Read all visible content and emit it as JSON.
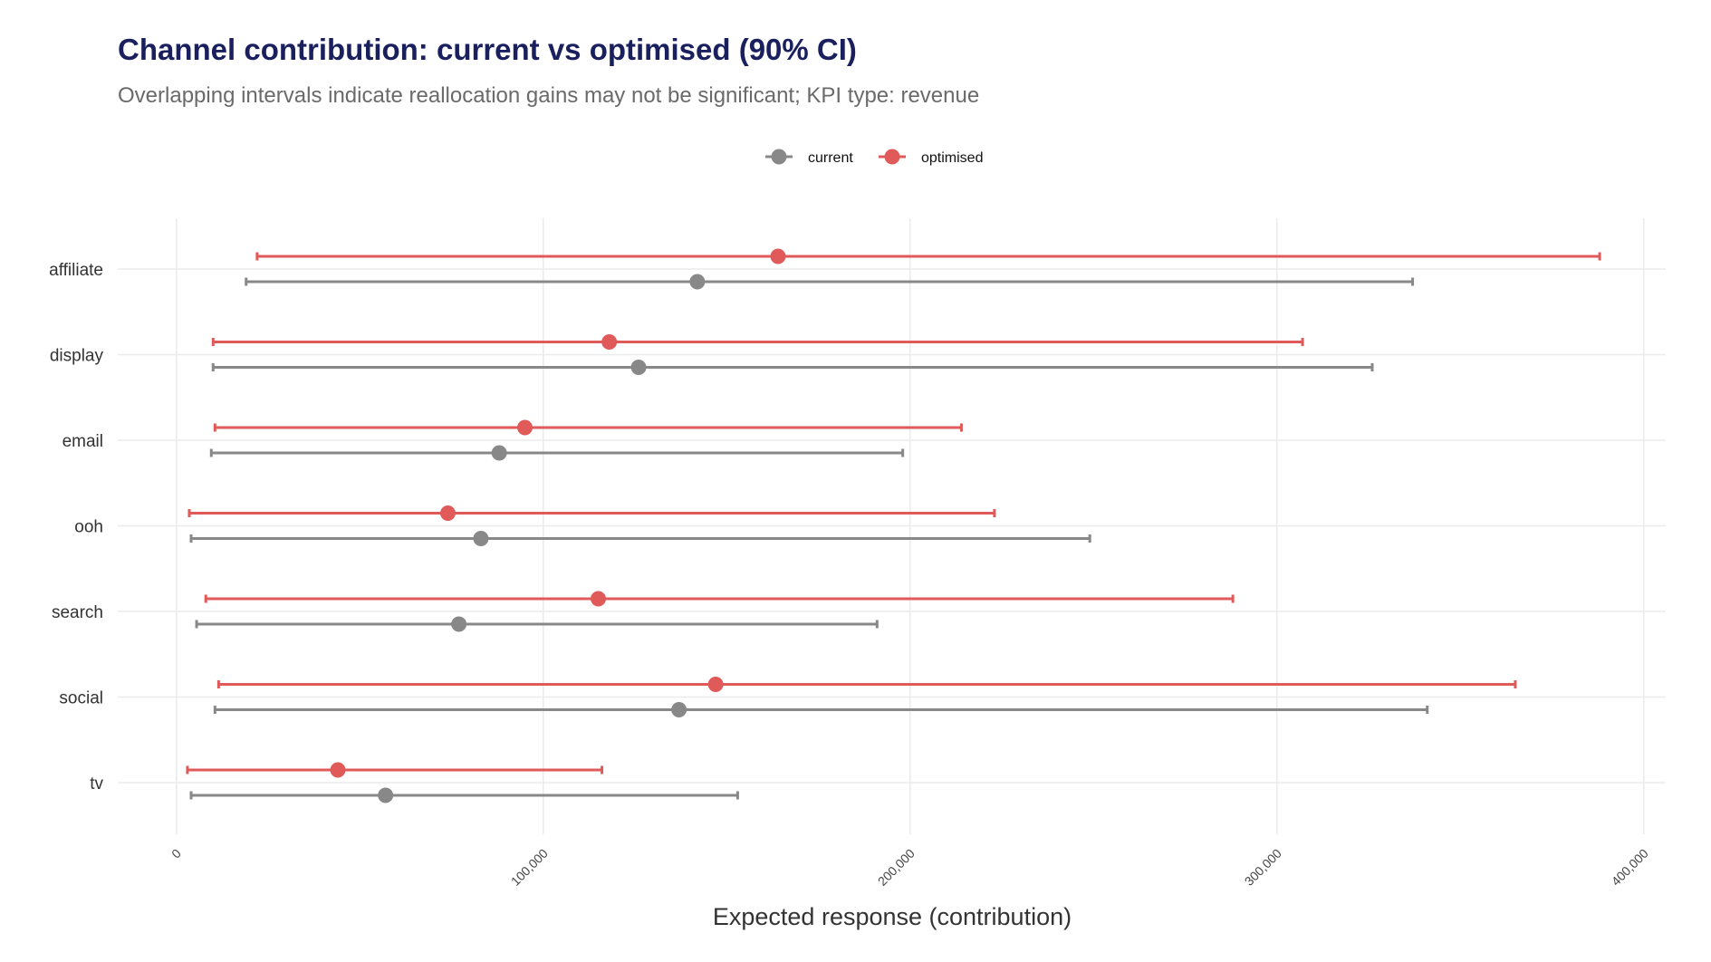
{
  "title": "Channel contribution: current vs optimised (90% CI)",
  "subtitle": "Overlapping intervals indicate reallocation gains may not be significant; KPI type: revenue",
  "chart_data": {
    "type": "interval",
    "xlabel": "Expected response (contribution)",
    "ylabel": "",
    "xlim": [
      -16000,
      406000
    ],
    "xticks": [
      0,
      100000,
      200000,
      300000,
      400000
    ],
    "xtick_labels": [
      "0",
      "100,000",
      "200,000",
      "300,000",
      "400,000"
    ],
    "categories": [
      "affiliate",
      "display",
      "email",
      "ooh",
      "search",
      "social",
      "tv"
    ],
    "grid": true,
    "legend_position": "top",
    "series": [
      {
        "name": "current",
        "color": "#888888",
        "mean": [
          142000,
          126000,
          88000,
          83000,
          77000,
          137000,
          57000
        ],
        "lower": [
          19000,
          10000,
          9500,
          4000,
          5500,
          10500,
          4000
        ],
        "upper": [
          337000,
          326000,
          198000,
          249000,
          191000,
          341000,
          153000
        ]
      },
      {
        "name": "optimised",
        "color": "#e05a5a",
        "mean": [
          164000,
          118000,
          95000,
          74000,
          115000,
          147000,
          44000
        ],
        "lower": [
          22000,
          10000,
          10500,
          3500,
          8000,
          11500,
          3000
        ],
        "upper": [
          388000,
          307000,
          214000,
          223000,
          288000,
          365000,
          116000
        ]
      }
    ]
  }
}
